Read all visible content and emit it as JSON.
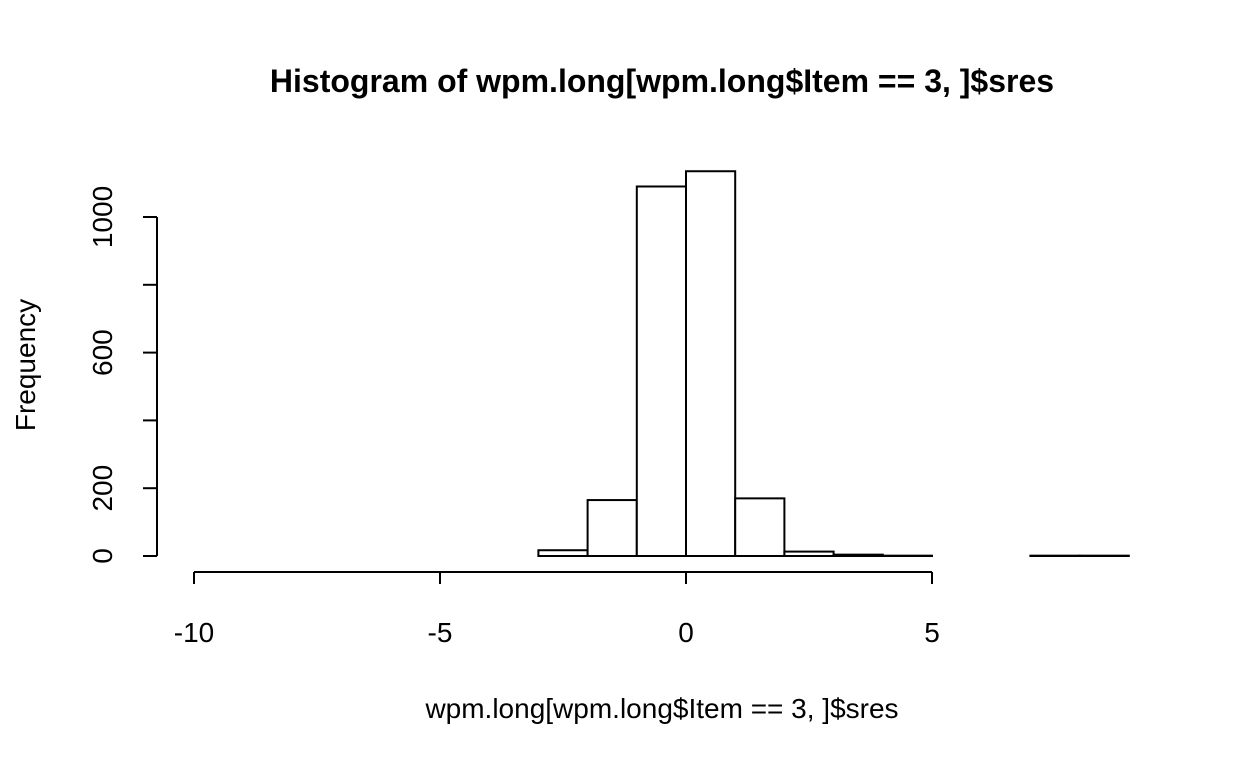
{
  "chart_data": {
    "type": "bar",
    "title": "Histogram of wpm.long[wpm.long$Item == 3, ]$sres",
    "xlabel": "wpm.long[wpm.long$Item == 3, ]$sres",
    "ylabel": "Frequency",
    "bins": [
      {
        "x0": -10,
        "x1": -9,
        "count": 0
      },
      {
        "x0": -9,
        "x1": -8,
        "count": 0
      },
      {
        "x0": -8,
        "x1": -7,
        "count": 0
      },
      {
        "x0": -7,
        "x1": -6,
        "count": 0
      },
      {
        "x0": -6,
        "x1": -5,
        "count": 0
      },
      {
        "x0": -5,
        "x1": -4,
        "count": 0
      },
      {
        "x0": -4,
        "x1": -3,
        "count": 0
      },
      {
        "x0": -3,
        "x1": -2,
        "count": 17
      },
      {
        "x0": -2,
        "x1": -1,
        "count": 165
      },
      {
        "x0": -1,
        "x1": 0,
        "count": 1090
      },
      {
        "x0": 0,
        "x1": 1,
        "count": 1135
      },
      {
        "x0": 1,
        "x1": 2,
        "count": 170
      },
      {
        "x0": 2,
        "x1": 3,
        "count": 13
      },
      {
        "x0": 3,
        "x1": 4,
        "count": 4
      },
      {
        "x0": 4,
        "x1": 5,
        "count": 1
      },
      {
        "x0": 5,
        "x1": 6,
        "count": 0
      },
      {
        "x0": 6,
        "x1": 7,
        "count": 0
      },
      {
        "x0": 7,
        "x1": 8,
        "count": 1
      },
      {
        "x0": 8,
        "x1": 9,
        "count": 1
      }
    ],
    "xlim": [
      -10,
      9
    ],
    "ylim": [
      0,
      1135
    ],
    "x_ticks": [
      -10,
      -5,
      0,
      5
    ],
    "x_tick_labels": [
      "-10",
      "-5",
      "0",
      "5"
    ],
    "y_ticks": [
      0,
      200,
      400,
      600,
      800,
      1000
    ],
    "y_tick_labels": [
      "0",
      "200",
      "",
      "600",
      "",
      "1000"
    ],
    "grid": false
  }
}
